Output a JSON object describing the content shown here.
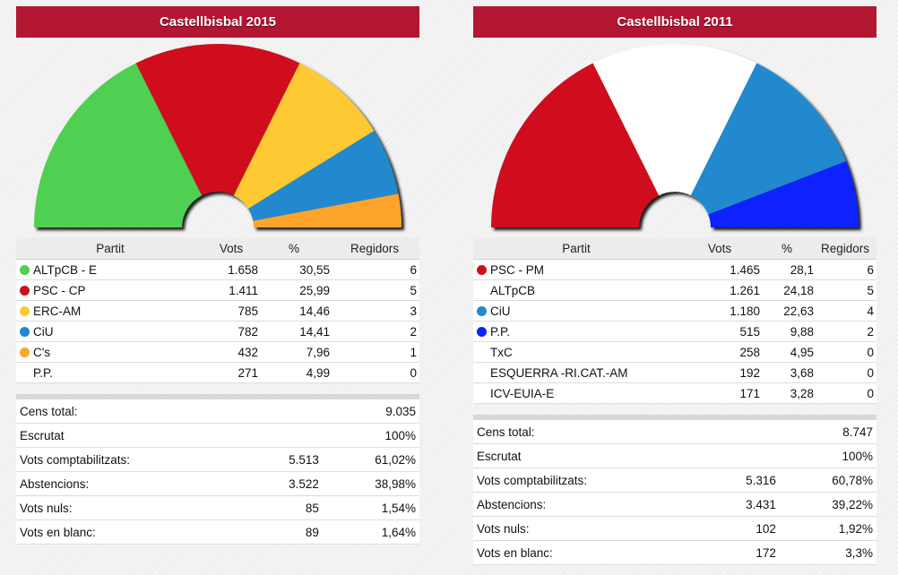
{
  "chart_data": [
    {
      "type": "pie",
      "subtype": "hemicycle",
      "title": "Castellbisbal 2015",
      "value_basis": "seats",
      "total_seats": 17,
      "columns": [
        "Partit",
        "Vots",
        "%",
        "Regidors"
      ],
      "parties": [
        {
          "name": "ALTpCB - E",
          "votes": "1.658",
          "pct": "30,55",
          "seats": 6,
          "color": "#4fd052"
        },
        {
          "name": "PSC - CP",
          "votes": "1.411",
          "pct": "25,99",
          "seats": 5,
          "color": "#cf101f"
        },
        {
          "name": "ERC-AM",
          "votes": "785",
          "pct": "14,46",
          "seats": 3,
          "color": "#fec930"
        },
        {
          "name": "CiU",
          "votes": "782",
          "pct": "14,41",
          "seats": 2,
          "color": "#2089cf"
        },
        {
          "name": "C's",
          "votes": "432",
          "pct": "7,96",
          "seats": 1,
          "color": "#fea42b"
        },
        {
          "name": "P.P.",
          "votes": "271",
          "pct": "4,99",
          "seats": 0,
          "color": null
        }
      ],
      "stats": [
        {
          "label": "Cens total:",
          "value": "",
          "pct": "9.035"
        },
        {
          "label": "Escrutat",
          "value": "",
          "pct": "100%"
        },
        {
          "label": "Vots comptabilitzats:",
          "value": "5.513",
          "pct": "61,02%"
        },
        {
          "label": "Abstencions:",
          "value": "3.522",
          "pct": "38,98%"
        },
        {
          "label": "Vots nuls:",
          "value": "85",
          "pct": "1,54%"
        },
        {
          "label": "Vots en blanc:",
          "value": "89",
          "pct": "1,64%"
        }
      ]
    },
    {
      "type": "pie",
      "subtype": "hemicycle",
      "title": "Castellbisbal 2011",
      "value_basis": "seats",
      "total_seats": 17,
      "columns": [
        "Partit",
        "Vots",
        "%",
        "Regidors"
      ],
      "parties": [
        {
          "name": "PSC - PM",
          "votes": "1.465",
          "pct": "28,1",
          "seats": 6,
          "color": "#cf101f"
        },
        {
          "name": "ALTpCB",
          "votes": "1.261",
          "pct": "24,18",
          "seats": 5,
          "color": "#ffffff"
        },
        {
          "name": "CiU",
          "votes": "1.180",
          "pct": "22,63",
          "seats": 4,
          "color": "#2089cf"
        },
        {
          "name": "P.P.",
          "votes": "515",
          "pct": "9,88",
          "seats": 2,
          "color": "#0d22ff"
        },
        {
          "name": "TxC",
          "votes": "258",
          "pct": "4,95",
          "seats": 0,
          "color": null
        },
        {
          "name": "ESQUERRA -RI.CAT.-AM",
          "votes": "192",
          "pct": "3,68",
          "seats": 0,
          "color": null
        },
        {
          "name": "ICV-EUIA-E",
          "votes": "171",
          "pct": "3,28",
          "seats": 0,
          "color": null
        }
      ],
      "stats": [
        {
          "label": "Cens total:",
          "value": "",
          "pct": "8.747"
        },
        {
          "label": "Escrutat",
          "value": "",
          "pct": "100%"
        },
        {
          "label": "Vots comptabilitzats:",
          "value": "5.316",
          "pct": "60,78%"
        },
        {
          "label": "Abstencions:",
          "value": "3.431",
          "pct": "39,22%"
        },
        {
          "label": "Vots nuls:",
          "value": "102",
          "pct": "1,92%"
        },
        {
          "label": "Vots en blanc:",
          "value": "172",
          "pct": "3,3%"
        }
      ]
    }
  ]
}
